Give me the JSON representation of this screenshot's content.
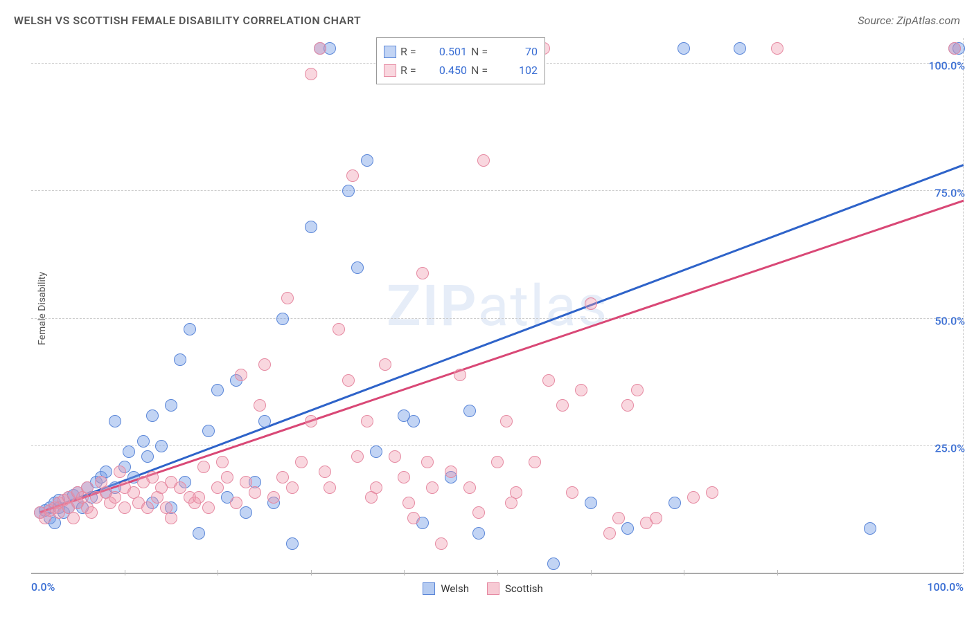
{
  "title": "WELSH VS SCOTTISH FEMALE DISABILITY CORRELATION CHART",
  "source": "Source: ZipAtlas.com",
  "ylabel": "Female Disability",
  "watermark_bold": "ZIP",
  "watermark_light": "atlas",
  "chart": {
    "type": "scatter",
    "xlim": [
      0,
      100
    ],
    "ylim": [
      0,
      105
    ],
    "grid_y": [
      25,
      50,
      75,
      100
    ],
    "grid_color": "#cccccc",
    "x_ticks": [
      10,
      20,
      30,
      40,
      50,
      60,
      70,
      80
    ],
    "y_tick_labels": {
      "25": "25.0%",
      "50": "50.0%",
      "75": "75.0%",
      "100": "100.0%"
    },
    "x_min_label": "0.0%",
    "x_max_label": "100.0%",
    "label_color": "#3b6fd4",
    "series": [
      {
        "name": "Welsh",
        "fill": "rgba(120,160,230,0.45)",
        "stroke": "#5a86d8",
        "line_color": "#2e63c9",
        "r": 0.501,
        "n": 70,
        "trend": {
          "x1": 1,
          "y1": 12,
          "x2": 100,
          "y2": 80
        },
        "points": [
          [
            1,
            12
          ],
          [
            1.5,
            12.5
          ],
          [
            2,
            13
          ],
          [
            2,
            11
          ],
          [
            2.5,
            14
          ],
          [
            2.5,
            10
          ],
          [
            3,
            13
          ],
          [
            3,
            14.5
          ],
          [
            3.5,
            12
          ],
          [
            4,
            15
          ],
          [
            4,
            13
          ],
          [
            4.5,
            15.5
          ],
          [
            5,
            14
          ],
          [
            5,
            16
          ],
          [
            5.5,
            13
          ],
          [
            6,
            17
          ],
          [
            6.5,
            15
          ],
          [
            7,
            18
          ],
          [
            7.5,
            19
          ],
          [
            8,
            16
          ],
          [
            8,
            20
          ],
          [
            9,
            17
          ],
          [
            9,
            30
          ],
          [
            10,
            21
          ],
          [
            10.5,
            24
          ],
          [
            11,
            19
          ],
          [
            12,
            26
          ],
          [
            12.5,
            23
          ],
          [
            13,
            31
          ],
          [
            13,
            14
          ],
          [
            14,
            25
          ],
          [
            15,
            33
          ],
          [
            15,
            13
          ],
          [
            16,
            42
          ],
          [
            16.5,
            18
          ],
          [
            17,
            48
          ],
          [
            18,
            8
          ],
          [
            19,
            28
          ],
          [
            20,
            36
          ],
          [
            21,
            15
          ],
          [
            22,
            38
          ],
          [
            23,
            12
          ],
          [
            24,
            18
          ],
          [
            25,
            30
          ],
          [
            26,
            14
          ],
          [
            27,
            50
          ],
          [
            28,
            6
          ],
          [
            30,
            68
          ],
          [
            31,
            103
          ],
          [
            32,
            103
          ],
          [
            34,
            75
          ],
          [
            35,
            60
          ],
          [
            36,
            81
          ],
          [
            37,
            24
          ],
          [
            40,
            31
          ],
          [
            41,
            30
          ],
          [
            42,
            10
          ],
          [
            45,
            19
          ],
          [
            47,
            32
          ],
          [
            48,
            8
          ],
          [
            50,
            103
          ],
          [
            56,
            2
          ],
          [
            60,
            14
          ],
          [
            64,
            9
          ],
          [
            69,
            14
          ],
          [
            70,
            103
          ],
          [
            76,
            103
          ],
          [
            90,
            9
          ],
          [
            99,
            103
          ],
          [
            99.5,
            103
          ]
        ]
      },
      {
        "name": "Scottish",
        "fill": "rgba(240,150,170,0.38)",
        "stroke": "#e68aa2",
        "line_color": "#d94876",
        "r": 0.45,
        "n": 102,
        "trend": {
          "x1": 1,
          "y1": 12,
          "x2": 100,
          "y2": 73
        },
        "points": [
          [
            1,
            12
          ],
          [
            1.5,
            11
          ],
          [
            2,
            12.5
          ],
          [
            2.5,
            13
          ],
          [
            3,
            14
          ],
          [
            3,
            12
          ],
          [
            3.5,
            14.5
          ],
          [
            4,
            13
          ],
          [
            4,
            15
          ],
          [
            4.5,
            11
          ],
          [
            5,
            14
          ],
          [
            5,
            16
          ],
          [
            5.5,
            15
          ],
          [
            6,
            17
          ],
          [
            6,
            13
          ],
          [
            6.5,
            12
          ],
          [
            7,
            15
          ],
          [
            7.5,
            18
          ],
          [
            8,
            16
          ],
          [
            8.5,
            14
          ],
          [
            9,
            15
          ],
          [
            9.5,
            20
          ],
          [
            10,
            17
          ],
          [
            10,
            13
          ],
          [
            11,
            16
          ],
          [
            11.5,
            14
          ],
          [
            12,
            18
          ],
          [
            12.5,
            13
          ],
          [
            13,
            19
          ],
          [
            13.5,
            15
          ],
          [
            14,
            17
          ],
          [
            14.5,
            13
          ],
          [
            15,
            18
          ],
          [
            15,
            11
          ],
          [
            16,
            17
          ],
          [
            17,
            15
          ],
          [
            17.5,
            14
          ],
          [
            18,
            15
          ],
          [
            18.5,
            21
          ],
          [
            19,
            13
          ],
          [
            20,
            17
          ],
          [
            20.5,
            22
          ],
          [
            21,
            19
          ],
          [
            22,
            14
          ],
          [
            22.5,
            39
          ],
          [
            23,
            18
          ],
          [
            24,
            16
          ],
          [
            24.5,
            33
          ],
          [
            25,
            41
          ],
          [
            26,
            15
          ],
          [
            27,
            19
          ],
          [
            27.5,
            54
          ],
          [
            28,
            17
          ],
          [
            29,
            22
          ],
          [
            30,
            98
          ],
          [
            30,
            30
          ],
          [
            31,
            103
          ],
          [
            31.5,
            20
          ],
          [
            32,
            17
          ],
          [
            33,
            48
          ],
          [
            34,
            38
          ],
          [
            34.5,
            78
          ],
          [
            35,
            23
          ],
          [
            36,
            30
          ],
          [
            36.5,
            15
          ],
          [
            37,
            17
          ],
          [
            38,
            41
          ],
          [
            39,
            23
          ],
          [
            40,
            19
          ],
          [
            40.5,
            14
          ],
          [
            41,
            11
          ],
          [
            42,
            59
          ],
          [
            42.5,
            22
          ],
          [
            43,
            17
          ],
          [
            44,
            6
          ],
          [
            45,
            20
          ],
          [
            46,
            39
          ],
          [
            47,
            17
          ],
          [
            48,
            12
          ],
          [
            48.5,
            81
          ],
          [
            49,
            103
          ],
          [
            50,
            22
          ],
          [
            51,
            30
          ],
          [
            51.5,
            14
          ],
          [
            52,
            16
          ],
          [
            54,
            22
          ],
          [
            55,
            103
          ],
          [
            55.5,
            38
          ],
          [
            57,
            33
          ],
          [
            58,
            16
          ],
          [
            59,
            36
          ],
          [
            60,
            53
          ],
          [
            62,
            8
          ],
          [
            63,
            11
          ],
          [
            64,
            33
          ],
          [
            65,
            36
          ],
          [
            66,
            10
          ],
          [
            67,
            11
          ],
          [
            71,
            15
          ],
          [
            73,
            16
          ],
          [
            80,
            103
          ],
          [
            99,
            103
          ]
        ]
      }
    ]
  },
  "legend_bottom": [
    {
      "name": "Welsh",
      "fill": "rgba(120,160,230,0.55)",
      "stroke": "#5a86d8"
    },
    {
      "name": "Scottish",
      "fill": "rgba(240,150,170,0.5)",
      "stroke": "#e68aa2"
    }
  ]
}
